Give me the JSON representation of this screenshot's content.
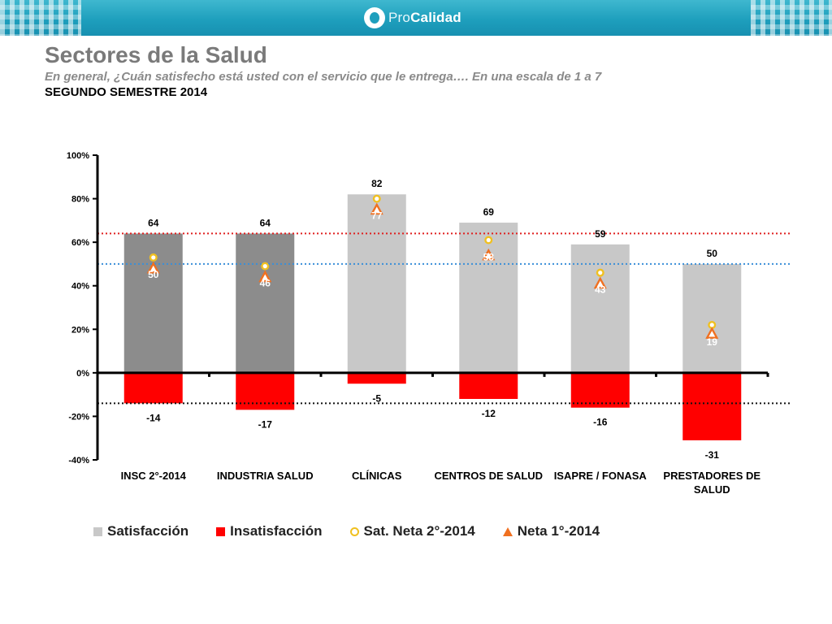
{
  "header": {
    "logo_text_a": "Pro",
    "logo_text_b": "Calidad"
  },
  "title": "Sectores de la Salud",
  "subtitle": "En general, ¿Cuán satisfecho está usted con el servicio que le entrega….  En una escala de 1 a 7",
  "period": "SEGUNDO SEMESTRE 2014",
  "colors": {
    "sat_dark": "#8c8c8c",
    "sat_light": "#c8c8c8",
    "insat": "#ff0000",
    "neta2": "#f0c020",
    "neta1": "#f07020",
    "ref_red": "#e02020",
    "ref_blue": "#3a8fd8",
    "ref_black": "#111111"
  },
  "chart_data": {
    "type": "bar",
    "categories": [
      "INSC 2°-2014",
      "INDUSTRIA SALUD",
      "CLÍNICAS",
      "CENTROS DE SALUD",
      "ISAPRE / FONASA",
      "PRESTADORES DE SALUD"
    ],
    "ylim": [
      -40,
      100
    ],
    "yticks": [
      -40,
      -20,
      0,
      20,
      40,
      60,
      80,
      100
    ],
    "ytick_labels": [
      "-40%",
      "-20%",
      "0%",
      "20%",
      "40%",
      "60%",
      "80%",
      "100%"
    ],
    "series": [
      {
        "name": "Satisfacción",
        "values": [
          64,
          64,
          82,
          69,
          59,
          50
        ]
      },
      {
        "name": "Insatisfacción",
        "values": [
          -14,
          -17,
          -5,
          -12,
          -16,
          -31
        ]
      },
      {
        "name": "Sat. Neta 2°-2014",
        "values": [
          50,
          46,
          77,
          58,
          43,
          19
        ]
      },
      {
        "name": "Neta 1°-2014",
        "values": [
          48,
          44,
          75,
          54,
          41,
          18
        ]
      }
    ],
    "sat_label_values": [
      "64",
      "64",
      "82",
      "69",
      "59",
      "50"
    ],
    "insat_label_values": [
      "-14",
      "-17",
      "-5",
      "-12",
      "-16",
      "-31"
    ],
    "neta_label_values": [
      "50",
      "46",
      "77",
      "58",
      "43",
      "19"
    ],
    "reference_lines": [
      {
        "name": "insc-satisfaction",
        "value": 64,
        "color": "#e02020"
      },
      {
        "name": "insc-net",
        "value": 50,
        "color": "#3a8fd8"
      },
      {
        "name": "insc-dissatisfaction",
        "value": -14,
        "color": "#111111"
      }
    ]
  },
  "legend": {
    "sat": "Satisfacción",
    "insat": "Insatisfacción",
    "neta2": "Sat. Neta 2°-2014",
    "neta1": "Neta 1°-2014"
  }
}
